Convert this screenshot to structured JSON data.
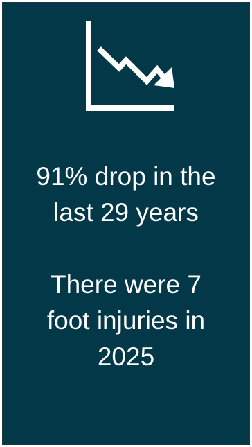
{
  "icon": "declining-trend-chart-icon",
  "colors": {
    "background": "#023848",
    "foreground": "#ffffff"
  },
  "stat_drop": {
    "lines": [
      "91% drop in the",
      "last 29 years"
    ]
  },
  "stat_injuries": {
    "lines": [
      "There were 7",
      "foot injuries in",
      "2025"
    ]
  }
}
